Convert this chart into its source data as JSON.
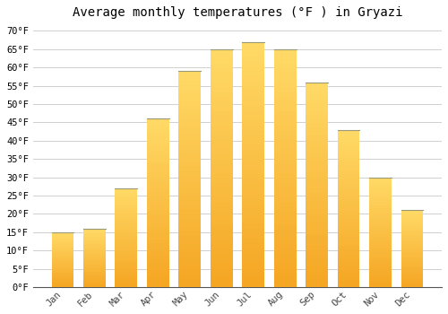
{
  "title": "Average monthly temperatures (°F ) in Gryazi",
  "months": [
    "Jan",
    "Feb",
    "Mar",
    "Apr",
    "May",
    "Jun",
    "Jul",
    "Aug",
    "Sep",
    "Oct",
    "Nov",
    "Dec"
  ],
  "values": [
    15,
    16,
    27,
    46,
    59,
    65,
    67,
    65,
    56,
    43,
    30,
    21
  ],
  "bar_color_bottom": "#F5A623",
  "bar_color_top": "#FFD966",
  "bar_edge_color": "#B8860B",
  "ylim": [
    0,
    72
  ],
  "yticks": [
    0,
    5,
    10,
    15,
    20,
    25,
    30,
    35,
    40,
    45,
    50,
    55,
    60,
    65,
    70
  ],
  "ytick_labels": [
    "0°F",
    "5°F",
    "10°F",
    "15°F",
    "20°F",
    "25°F",
    "30°F",
    "35°F",
    "40°F",
    "45°F",
    "50°F",
    "55°F",
    "60°F",
    "65°F",
    "70°F"
  ],
  "background_color": "#ffffff",
  "grid_color": "#d0d0d0",
  "title_fontsize": 10,
  "tick_fontsize": 7.5,
  "font_family": "monospace",
  "bar_width": 0.7
}
